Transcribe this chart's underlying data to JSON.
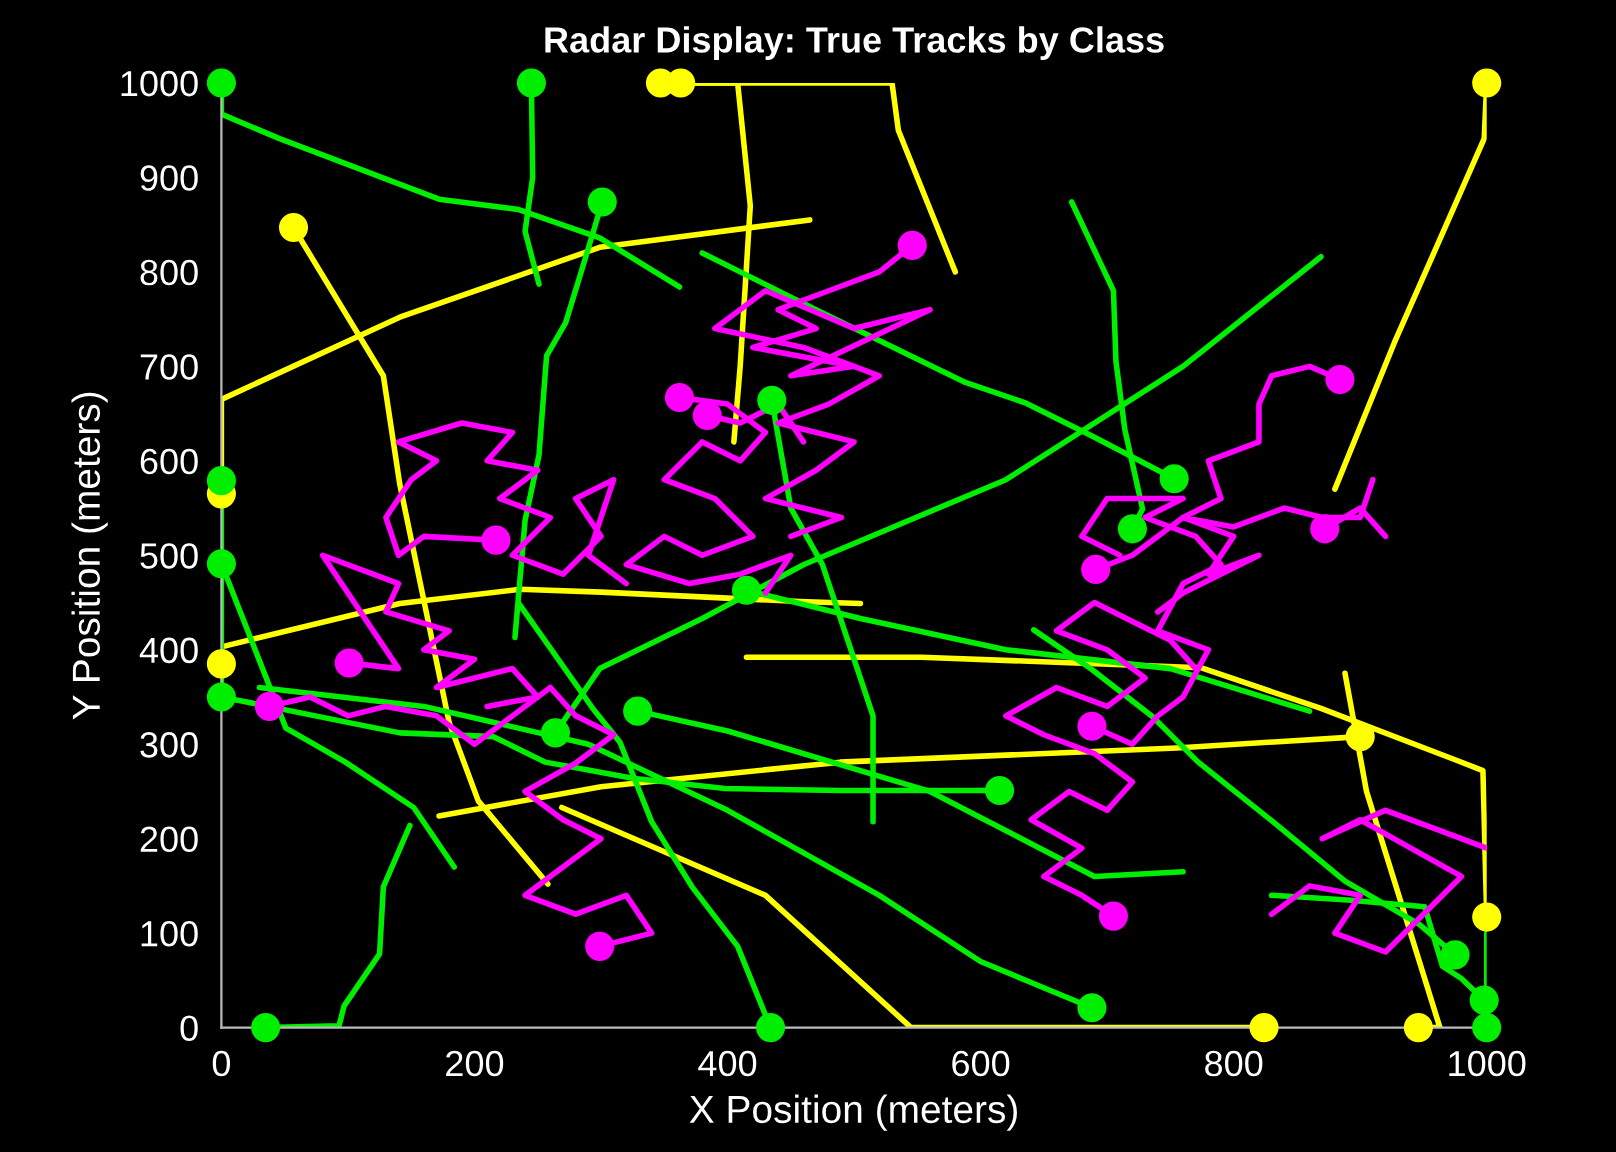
{
  "chart_data": {
    "type": "line",
    "title": "Radar Display: True Tracks by Class",
    "xlabel": "X Position (meters)",
    "ylabel": "Y Position (meters)",
    "xlim": [
      0,
      1000
    ],
    "ylim": [
      0,
      1000
    ],
    "xticks": [
      0,
      200,
      400,
      600,
      800,
      1000
    ],
    "yticks": [
      0,
      100,
      200,
      300,
      400,
      500,
      600,
      700,
      800,
      900,
      1000
    ],
    "grid": false,
    "series": [
      {
        "color": "#ffff00",
        "x": [
          347,
          530,
          535,
          580
        ],
        "values": [
          1000,
          1000,
          950,
          800
        ]
      },
      {
        "color": "#ffff00",
        "x": [
          363,
          408,
          418,
          410,
          405
        ],
        "values": [
          1000,
          1000,
          870,
          700,
          620
        ]
      },
      {
        "color": "#ffff00",
        "x": [
          57,
          128,
          141,
          180,
          203,
          258
        ],
        "values": [
          847,
          690,
          575,
          323,
          240,
          152
        ]
      },
      {
        "color": "#ffff00",
        "x": [
          0,
          0,
          141,
          299,
          465
        ],
        "values": [
          565,
          665,
          752,
          826,
          855
        ]
      },
      {
        "color": "#ffff00",
        "x": [
          0,
          0,
          141,
          236,
          300,
          457,
          505
        ],
        "values": [
          385,
          403,
          449,
          464,
          461,
          451,
          449
        ]
      },
      {
        "color": "#ffff00",
        "x": [
          415,
          553,
          774,
          869,
          976,
          997,
          1000
        ],
        "values": [
          392,
          392,
          381,
          338,
          283,
          272,
          117
        ]
      },
      {
        "color": "#ffff00",
        "x": [
          900,
          755,
          489,
          300,
          172
        ],
        "values": [
          308,
          296,
          281,
          255,
          224
        ]
      },
      {
        "color": "#ffff00",
        "x": [
          269,
          430,
          545,
          824
        ],
        "values": [
          233,
          140,
          0,
          0
        ]
      },
      {
        "color": "#ffff00",
        "x": [
          946,
          963,
          905,
          888
        ],
        "values": [
          0,
          0,
          250,
          375
        ]
      },
      {
        "color": "#ffff00",
        "x": [
          1000,
          998,
          927,
          880
        ],
        "values": [
          1000,
          941,
          725,
          570
        ]
      },
      {
        "color": "#00ee00",
        "x": [
          0,
          0,
          46,
          172,
          235,
          299,
          362
        ],
        "values": [
          1000,
          967,
          941,
          877,
          866,
          836,
          784
        ]
      },
      {
        "color": "#00ee00",
        "x": [
          245,
          246,
          240,
          251
        ],
        "values": [
          1000,
          900,
          843,
          787
        ]
      },
      {
        "color": "#00ee00",
        "x": [
          301,
          283,
          272,
          257,
          251,
          240,
          232
        ],
        "values": [
          874,
          794,
          746,
          711,
          606,
          537,
          413
        ]
      },
      {
        "color": "#00ee00",
        "x": [
          435,
          450,
          475,
          515,
          515
        ],
        "values": [
          664,
          550,
          490,
          330,
          218
        ]
      },
      {
        "color": "#00ee00",
        "x": [
          35,
          93,
          97,
          125,
          128,
          149
        ],
        "values": [
          0,
          2,
          23,
          78,
          149,
          214
        ]
      },
      {
        "color": "#00ee00",
        "x": [
          0,
          51,
          98,
          152,
          184
        ],
        "values": [
          491,
          317,
          281,
          233,
          170
        ]
      },
      {
        "color": "#00ee00",
        "x": [
          0,
          141,
          215,
          256,
          325,
          398,
          490,
          615
        ],
        "values": [
          350,
          312,
          308,
          281,
          264,
          253,
          251,
          251
        ]
      },
      {
        "color": "#00ee00",
        "x": [
          0,
          0
        ],
        "values": [
          579,
          350
        ]
      },
      {
        "color": "#00ee00",
        "x": [
          264,
          299,
          380,
          460,
          540,
          620,
          760,
          869
        ],
        "values": [
          312,
          380,
          433,
          490,
          535,
          580,
          700,
          816
        ]
      },
      {
        "color": "#00ee00",
        "x": [
          329,
          400,
          560,
          690,
          760
        ],
        "values": [
          335,
          314,
          250,
          160,
          165
        ]
      },
      {
        "color": "#00ee00",
        "x": [
          415,
          505,
          620,
          750,
          860
        ],
        "values": [
          463,
          433,
          400,
          380,
          335
        ]
      },
      {
        "color": "#00ee00",
        "x": [
          688,
          600,
          520,
          400,
          290,
          160,
          30
        ],
        "values": [
          21,
          70,
          140,
          230,
          300,
          340,
          360
        ]
      },
      {
        "color": "#00ee00",
        "x": [
          434,
          408,
          372,
          340,
          315,
          294,
          235
        ],
        "values": [
          0,
          86,
          149,
          218,
          302,
          337,
          449
        ]
      },
      {
        "color": "#00ee00",
        "x": [
          753,
          690,
          636,
          588,
          470,
          380
        ],
        "values": [
          581,
          625,
          661,
          683,
          760,
          820
        ]
      },
      {
        "color": "#00ee00",
        "x": [
          672,
          705,
          707,
          714,
          728,
          720
        ],
        "values": [
          874,
          780,
          705,
          633,
          549,
          528
        ]
      },
      {
        "color": "#00ee00",
        "x": [
          975,
          947,
          888,
          831,
          772,
          736,
          688,
          642
        ],
        "values": [
          77,
          109,
          155,
          218,
          281,
          329,
          379,
          421
        ]
      },
      {
        "color": "#00ee00",
        "x": [
          998,
          980,
          965,
          951,
          890,
          830
        ],
        "values": [
          29,
          52,
          65,
          128,
          135,
          140
        ]
      },
      {
        "color": "#00ee00",
        "x": [
          1000,
          1000
        ],
        "values": [
          0,
          100
        ]
      },
      {
        "color": "#ff00ff",
        "x": [
          546,
          520,
          480,
          440,
          470,
          420,
          500,
          450,
          560,
          500,
          430,
          390,
          460,
          520,
          480,
          440,
          500,
          470,
          430,
          490,
          450
        ],
        "values": [
          828,
          800,
          780,
          760,
          740,
          720,
          700,
          690,
          760,
          740,
          780,
          740,
          720,
          690,
          660,
          640,
          620,
          590,
          560,
          540,
          520
        ]
      },
      {
        "color": "#ff00ff",
        "x": [
          362,
          400,
          430,
          410,
          380,
          350,
          390,
          420,
          380,
          350,
          320,
          370,
          410,
          450,
          430
        ],
        "values": [
          667,
          660,
          630,
          600,
          620,
          580,
          560,
          520,
          500,
          520,
          490,
          470,
          480,
          500,
          460
        ]
      },
      {
        "color": "#ff00ff",
        "x": [
          384,
          410,
          440,
          460
        ],
        "values": [
          648,
          640,
          660,
          620
        ]
      },
      {
        "color": "#ff00ff",
        "x": [
          217,
          160,
          140,
          130,
          150,
          170,
          140,
          190,
          230,
          210,
          250,
          220,
          260,
          230,
          270,
          300,
          280,
          310,
          290,
          320
        ],
        "values": [
          516,
          520,
          500,
          540,
          580,
          600,
          620,
          640,
          630,
          600,
          590,
          560,
          540,
          500,
          480,
          520,
          560,
          580,
          500,
          470
        ]
      },
      {
        "color": "#ff00ff",
        "x": [
          101,
          140,
          120,
          100,
          80,
          140,
          130,
          180,
          160,
          200,
          170,
          230,
          250,
          210
        ],
        "values": [
          386,
          380,
          420,
          460,
          500,
          470,
          440,
          420,
          400,
          390,
          360,
          380,
          350,
          340
        ]
      },
      {
        "color": "#ff00ff",
        "x": [
          38,
          70,
          100,
          130,
          170,
          200,
          230,
          260,
          280,
          310,
          280,
          240,
          270,
          300,
          270,
          240,
          280,
          320,
          340,
          299
        ],
        "values": [
          340,
          350,
          330,
          340,
          330,
          300,
          330,
          360,
          330,
          310,
          280,
          250,
          220,
          200,
          170,
          140,
          120,
          140,
          100,
          86
        ]
      },
      {
        "color": "#ff00ff",
        "x": [
          705,
          680,
          650,
          680,
          640,
          670,
          700,
          720,
          690,
          650,
          620,
          660,
          700,
          730,
          700,
          660,
          690,
          720,
          750,
          770
        ],
        "values": [
          118,
          140,
          160,
          190,
          220,
          250,
          230,
          260,
          290,
          310,
          330,
          360,
          340,
          370,
          400,
          420,
          450,
          430,
          410,
          380
        ]
      },
      {
        "color": "#ff00ff",
        "x": [
          688,
          720,
          740,
          760,
          780,
          740,
          760,
          790,
          770,
          730,
          760,
          700,
          680,
          710
        ],
        "values": [
          319,
          300,
          330,
          350,
          400,
          420,
          470,
          490,
          520,
          540,
          560,
          560,
          520,
          500
        ]
      },
      {
        "color": "#ff00ff",
        "x": [
          691,
          720,
          760,
          800,
          780,
          820,
          760,
          740
        ],
        "values": [
          485,
          500,
          540,
          520,
          480,
          500,
          460,
          440
        ]
      },
      {
        "color": "#ff00ff",
        "x": [
          884,
          860,
          830,
          820,
          820,
          780,
          790,
          760,
          800,
          840,
          870,
          900,
          910
        ],
        "values": [
          686,
          700,
          690,
          660,
          620,
          600,
          560,
          540,
          530,
          550,
          540,
          540,
          580
        ]
      },
      {
        "color": "#ff00ff",
        "x": [
          872,
          900,
          920
        ],
        "values": [
          528,
          550,
          520
        ]
      },
      {
        "color": "#ff00ff",
        "x": [
          830,
          860,
          900,
          880,
          920,
          950,
          980,
          940,
          900,
          870,
          920,
          960,
          1000
        ],
        "values": [
          120,
          150,
          140,
          100,
          80,
          120,
          160,
          190,
          220,
          200,
          230,
          210,
          190
        ]
      },
      {
        "type": "scatter",
        "marker": "circle",
        "color": "#ffff00",
        "x": [
          347,
          363,
          57,
          0,
          0,
          1000,
          900,
          824,
          946,
          1000
        ],
        "values": [
          1000,
          1000,
          847,
          565,
          385,
          117,
          308,
          0,
          0,
          1000
        ]
      },
      {
        "type": "scatter",
        "marker": "circle",
        "color": "#00ee00",
        "x": [
          0,
          245,
          301,
          435,
          35,
          0,
          0,
          0,
          615,
          264,
          329,
          415,
          688,
          434,
          753,
          720,
          975,
          998,
          1000
        ],
        "values": [
          1000,
          1000,
          874,
          664,
          0,
          491,
          350,
          579,
          251,
          312,
          335,
          463,
          21,
          0,
          581,
          528,
          77,
          29,
          0
        ]
      },
      {
        "type": "scatter",
        "marker": "circle",
        "color": "#ff00ff",
        "x": [
          546,
          362,
          384,
          217,
          101,
          38,
          299,
          705,
          688,
          691,
          884,
          872
        ],
        "values": [
          828,
          667,
          648,
          516,
          386,
          340,
          86,
          118,
          319,
          485,
          686,
          528
        ]
      }
    ]
  }
}
